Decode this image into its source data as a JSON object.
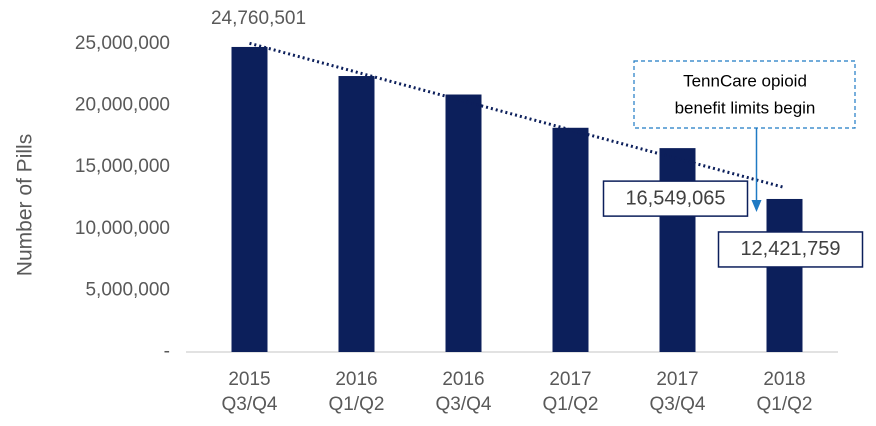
{
  "chart_data": {
    "type": "bar",
    "y_axis_label": "Number of Pills",
    "categories": [
      [
        "2015",
        "Q3/Q4"
      ],
      [
        "2016",
        "Q1/Q2"
      ],
      [
        "2016",
        "Q3/Q4"
      ],
      [
        "2017",
        "Q1/Q2"
      ],
      [
        "2017",
        "Q3/Q4"
      ],
      [
        "2018",
        "Q1/Q2"
      ]
    ],
    "values": [
      24760501,
      22400000,
      20900000,
      18200000,
      16549065,
      12421759
    ],
    "value_labels": [
      "24,760,501",
      null,
      null,
      null,
      "16,549,065",
      "12,421,759"
    ],
    "color": "#0c1f5b",
    "ylim": [
      0,
      25000000
    ],
    "yticks": [
      {
        "value": 0,
        "label": "-"
      },
      {
        "value": 5000000,
        "label": "5,000,000"
      },
      {
        "value": 10000000,
        "label": "10,000,000"
      },
      {
        "value": 15000000,
        "label": "15,000,000"
      },
      {
        "value": 20000000,
        "label": "20,000,000"
      },
      {
        "value": 25000000,
        "label": "25,000,000"
      }
    ],
    "trendline": true,
    "annotation": {
      "lines": [
        "TennCare opioid",
        "benefit limits begin"
      ],
      "category_index": 5,
      "color": "#1f7ac4"
    }
  }
}
